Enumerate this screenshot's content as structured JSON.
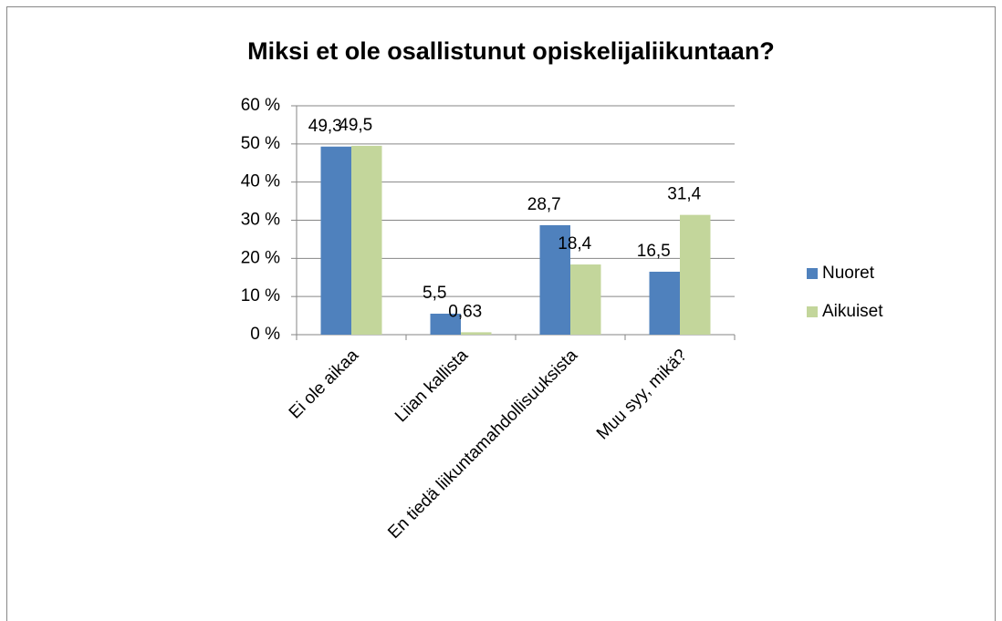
{
  "chart_data": {
    "type": "bar",
    "title": "Miksi et ole osallistunut opiskelijaliikuntaan?",
    "categories": [
      "Ei ole aikaa",
      "Liian kallista",
      "En tiedä liikuntamahdollisuuksista",
      "Muu syy, mikä?"
    ],
    "series": [
      {
        "name": "Nuoret",
        "color": "#4f81bd",
        "values": [
          49.3,
          5.5,
          28.7,
          16.5
        ],
        "value_labels": [
          "49,3",
          "5,5",
          "28,7",
          "16,5"
        ]
      },
      {
        "name": "Aikuiset",
        "color": "#c3d69b",
        "values": [
          49.5,
          0.63,
          18.4,
          31.4
        ],
        "value_labels": [
          "49,5",
          "0,63",
          "18,4",
          "31,4"
        ]
      }
    ],
    "ylim": [
      0,
      60
    ],
    "yticks": [
      {
        "value": 0,
        "label": "0 %"
      },
      {
        "value": 10,
        "label": "10 %"
      },
      {
        "value": 20,
        "label": "20 %"
      },
      {
        "value": 30,
        "label": "30 %"
      },
      {
        "value": 40,
        "label": "40 %"
      },
      {
        "value": 50,
        "label": "50 %"
      },
      {
        "value": 60,
        "label": "60 %"
      }
    ],
    "grid": true,
    "legend": "right"
  }
}
